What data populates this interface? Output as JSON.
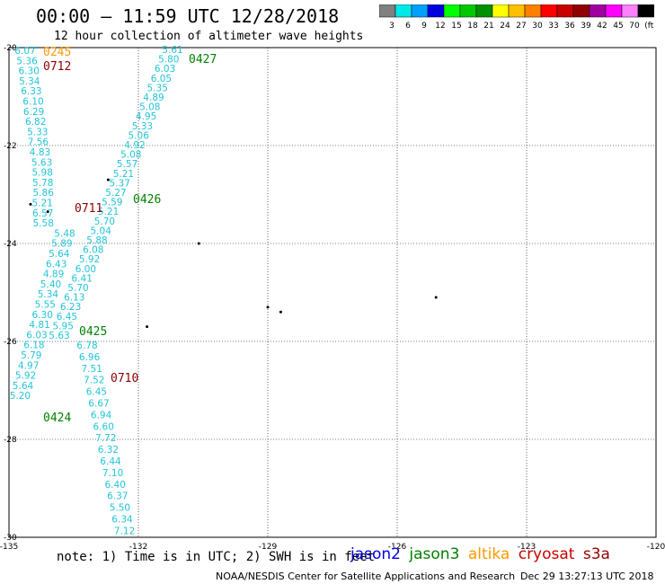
{
  "title": "00:00 – 11:59 UTC 12/28/2018",
  "subtitle": "12 hour collection of altimeter wave heights",
  "scale": {
    "labels": [
      "3",
      "6",
      "9",
      "12",
      "15",
      "18",
      "21",
      "24",
      "27",
      "30",
      "33",
      "36",
      "39",
      "42",
      "45",
      "70",
      "(ft)"
    ],
    "colors": [
      "#808080",
      "#00e8e8",
      "#00a0ff",
      "#0000e0",
      "#00ff00",
      "#00c800",
      "#009000",
      "#ffff00",
      "#ffc000",
      "#ff8000",
      "#ff0000",
      "#c80000",
      "#900000",
      "#a000a0",
      "#ff00ff",
      "#ff80ff",
      "#000000"
    ]
  },
  "axes": {
    "x_labels": [
      "-135",
      "-132",
      "-129",
      "-126",
      "-123",
      "-120"
    ],
    "y_labels": [
      "-20",
      "-22",
      "-24",
      "-26",
      "-28",
      "-30"
    ],
    "lon_range": [
      -135,
      -120
    ],
    "lat_range": [
      -30,
      -20
    ]
  },
  "passes": [
    {
      "label": "0245",
      "satellite": "altika",
      "time_label": true
    },
    {
      "label": "0712",
      "satellite": "cryosat"
    },
    {
      "label": "0427",
      "satellite": "jason3"
    },
    {
      "label": "0426",
      "satellite": "jason3"
    },
    {
      "label": "0711",
      "satellite": "cryosat"
    },
    {
      "label": "0425",
      "satellite": "jason3"
    },
    {
      "label": "0710",
      "satellite": "cryosat"
    },
    {
      "label": "0424",
      "satellite": "jason3"
    }
  ],
  "track_A_values": [
    "6.07",
    "5.36",
    "6.30",
    "5.34",
    "6.33",
    "6.10",
    "6.29",
    "6.82",
    "5.33",
    "7.56",
    "4.83",
    "5.63",
    "5.98",
    "5.78",
    "5.86",
    "5.21",
    "6.57",
    "5.58",
    "5.48",
    "5.89",
    "5.64",
    "6.43",
    "4.89",
    "5.40",
    "5.34",
    "5.55",
    "6.30",
    "4.81",
    "6.03",
    "6.18",
    "5.79",
    "4.97",
    "5.92",
    "5.64",
    "5.20"
  ],
  "track_B_values": [
    "5.61",
    "5.80",
    "6.03",
    "6.05",
    "5.35",
    "4.89",
    "5.08",
    "4.95",
    "5.33",
    "5.06",
    "4.92",
    "5.08",
    "5.57",
    "5.21",
    "5.37",
    "5.27",
    "5.59",
    "5.21",
    "5.70",
    "5.04",
    "5.88",
    "6.08",
    "5.92",
    "6.00",
    "6.41",
    "5.70",
    "6.13",
    "6.23",
    "6.45",
    "5.95",
    "5.63"
  ],
  "track_C_values": [
    "6.78",
    "6.96",
    "7.51",
    "7.52",
    "6.45",
    "6.67",
    "6.94",
    "6.60",
    "7.72",
    "6.32",
    "6.44",
    "7.10",
    "6.40",
    "6.37",
    "5.50",
    "6.34",
    "7.12"
  ],
  "note": "note:  1) Time is in UTC; 2) SWH is in feet",
  "legend": [
    {
      "name": "jason2",
      "color": "#0000e0"
    },
    {
      "name": "jason3",
      "color": "#008000"
    },
    {
      "name": "altika",
      "color": "#ff9900"
    },
    {
      "name": "cryosat",
      "color": "#cc0000"
    },
    {
      "name": "s3a",
      "color": "#990000"
    }
  ],
  "credit": "NOAA/NESDIS Center for Satellite Applications and Research",
  "timestamp": "Dec 29 13:27:13 UTC 2018",
  "colors": {
    "value_text": "#22c4d8",
    "grid": "#000000",
    "jason3": "#008000",
    "cryosat": "#8b0000",
    "altika": "#ff9900"
  }
}
